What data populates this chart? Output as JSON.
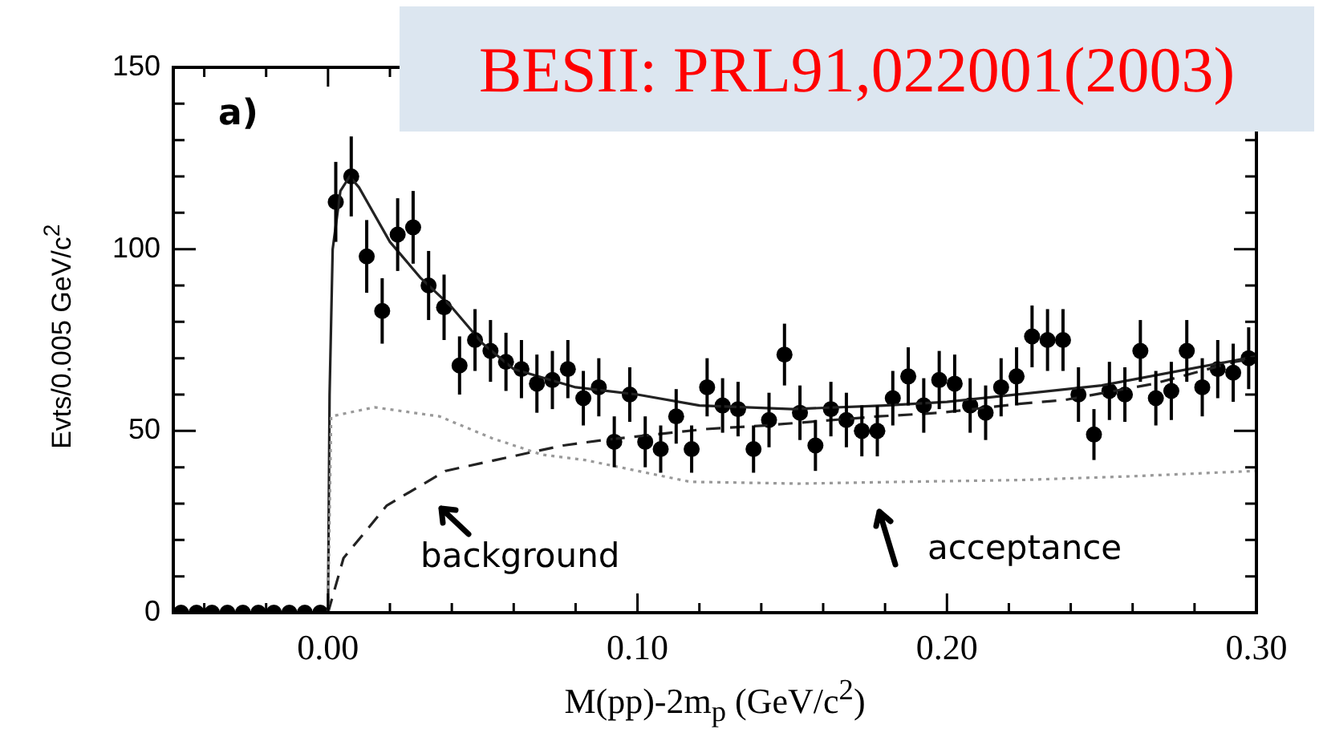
{
  "chart_data": {
    "type": "scatter",
    "title": "BESII: PRL91,022001(2003)",
    "xlabel": "M(pp)-2m$_{p}$ (GeV/c$^{2}$)",
    "ylabel": "Evts/0.005 GeV/c$^{2}$",
    "xlim": [
      -0.05,
      0.3
    ],
    "xticks": [
      {
        "value": -0.04,
        "label": null
      },
      {
        "value": -0.02,
        "label": null
      },
      {
        "value": 0,
        "label": "0.00"
      },
      {
        "value": 0.02,
        "label": null
      },
      {
        "value": 0.04,
        "label": null
      },
      {
        "value": 0.06,
        "label": null
      },
      {
        "value": 0.08,
        "label": null
      },
      {
        "value": 0.1,
        "label": "0.10"
      },
      {
        "value": 0.12,
        "label": null
      },
      {
        "value": 0.14,
        "label": null
      },
      {
        "value": 0.16,
        "label": null
      },
      {
        "value": 0.18,
        "label": null
      },
      {
        "value": 0.2,
        "label": "0.20"
      },
      {
        "value": 0.22,
        "label": null
      },
      {
        "value": 0.24,
        "label": null
      },
      {
        "value": 0.26,
        "label": null
      },
      {
        "value": 0.28,
        "label": null
      },
      {
        "value": 0.3,
        "label": "0.30"
      }
    ],
    "ylim": [
      0,
      150
    ],
    "yticks": [
      0,
      {
        "value": 10,
        "label": null
      },
      {
        "value": 20,
        "label": null
      },
      {
        "value": 30,
        "label": null
      },
      {
        "value": 40,
        "label": null
      },
      50,
      {
        "value": 60,
        "label": null
      },
      {
        "value": 70,
        "label": null
      },
      {
        "value": 80,
        "label": null
      },
      {
        "value": 90,
        "label": null
      },
      100,
      {
        "value": 110,
        "label": null
      },
      {
        "value": 120,
        "label": null
      },
      {
        "value": 130,
        "label": null
      },
      {
        "value": 140,
        "label": null
      },
      150
    ],
    "annotations": [
      "a)",
      "background",
      "acceptance"
    ],
    "series": [
      {
        "type": "line",
        "color": "#999999",
        "line_style": "dotted",
        "marker": "none",
        "x": [
          0,
          0.001,
          0.015,
          0.036,
          0.053,
          0.069,
          0.083,
          0.117,
          0.152,
          0.186,
          0.224,
          0.259,
          0.3
        ],
        "values": [
          0,
          54,
          56.5,
          54,
          48,
          43.5,
          42,
          36,
          35.5,
          36,
          36.5,
          37.5,
          39
        ]
      },
      {
        "type": "line",
        "color": "#222222",
        "line_style": "dashed",
        "marker": "none",
        "x": [
          0,
          0.005,
          0.019,
          0.038,
          0.065,
          0.076,
          0.089,
          0.122,
          0.141,
          0.178,
          0.198,
          0.224,
          0.238,
          0.267,
          0.293,
          0.3
        ],
        "values": [
          0,
          15,
          29.5,
          39,
          44,
          46,
          47.5,
          50.5,
          51.5,
          54,
          55,
          57.5,
          58.5,
          63,
          69,
          70
        ]
      },
      {
        "type": "line",
        "color": "#222222",
        "line_style": "solid",
        "marker": "none",
        "x": [
          0,
          0.0005,
          0.0015,
          0.004,
          0.007,
          0.01,
          0.02,
          0.03,
          0.04,
          0.05,
          0.06,
          0.08,
          0.1,
          0.12,
          0.15,
          0.18,
          0.2,
          0.25,
          0.3
        ],
        "values": [
          0,
          60,
          100,
          116,
          120,
          117,
          102,
          92,
          84,
          74,
          67,
          62,
          60,
          57,
          56,
          57,
          58,
          62.5,
          70.5
        ]
      },
      {
        "color": "#000000",
        "marker": "circle",
        "x": [
          -0.0475,
          -0.0425,
          -0.0375,
          -0.0325,
          -0.0275,
          -0.0225,
          -0.0175,
          -0.0125,
          -0.0075,
          -0.0025,
          0.0025,
          0.0075,
          0.0125,
          0.0175,
          0.0225,
          0.0275,
          0.0325,
          0.0375,
          0.0425,
          0.0475,
          0.0525,
          0.0575,
          0.0625,
          0.0675,
          0.0725,
          0.0775,
          0.0825,
          0.0875,
          0.0925,
          0.0975,
          0.1025,
          0.1075,
          0.1125,
          0.1175,
          0.1225,
          0.1275,
          0.1325,
          0.1375,
          0.1425,
          0.1475,
          0.1525,
          0.1575,
          0.1625,
          0.1675,
          0.1725,
          0.1775,
          0.1825,
          0.1875,
          0.1925,
          0.1975,
          0.2025,
          0.2075,
          0.2125,
          0.2175,
          0.2225,
          0.2275,
          0.2325,
          0.2375,
          0.2425,
          0.2475,
          0.2525,
          0.2575,
          0.2625,
          0.2675,
          0.2725,
          0.2775,
          0.2825,
          0.2875,
          0.2925,
          0.2975
        ],
        "values": [
          0,
          0,
          0,
          0,
          0,
          0,
          0,
          0,
          0,
          0,
          113,
          120,
          98,
          83,
          104,
          106,
          90,
          84,
          68,
          75,
          72,
          69,
          67,
          63,
          64,
          67,
          59,
          62,
          47,
          60,
          47,
          45,
          54,
          45,
          62,
          57,
          56,
          45,
          53,
          71,
          55,
          46,
          56,
          53,
          50,
          50,
          59,
          65,
          57,
          64,
          63,
          57,
          55,
          62,
          65,
          76,
          75,
          75,
          60,
          49,
          61,
          60,
          72,
          59,
          61,
          72,
          62,
          67,
          66,
          70
        ],
        "errors": [
          null,
          null,
          null,
          null,
          null,
          null,
          null,
          null,
          null,
          null,
          11,
          11,
          10,
          9,
          10,
          10,
          9.5,
          9,
          8,
          8.5,
          8.5,
          8,
          8,
          8,
          8,
          8,
          7.5,
          8,
          7,
          7.5,
          7,
          6.5,
          7.5,
          6.5,
          8,
          7.5,
          7.5,
          6.5,
          7.5,
          8.5,
          7.5,
          7,
          7.5,
          7.5,
          7,
          7,
          7.5,
          8,
          7.5,
          8,
          8,
          7.5,
          7.5,
          8,
          8,
          8.5,
          8.5,
          8.5,
          7.5,
          7,
          8,
          7.5,
          8.5,
          7.5,
          8,
          8.5,
          8,
          8,
          8,
          8.5
        ]
      }
    ]
  }
}
